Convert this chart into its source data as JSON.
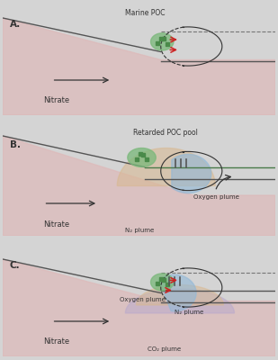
{
  "bg_color": "#d4d4d4",
  "beach_color": "#deb8b8",
  "beach_color_light": "#e8cece",
  "green_poc": "#4a8a4a",
  "green_poc_light": "#7ab87a",
  "blue_oxygen": "#90b8d8",
  "peach_n2": "#d8b890",
  "lavender_co2": "#b8a8cc",
  "arrow_red": "#cc2222",
  "arrow_black": "#333333",
  "label_color": "#333333",
  "title_A": "Marine POC",
  "title_B": "Retarded POC pool",
  "label_nitrate": "Nitrate",
  "label_n2": "N₂ plume",
  "label_oxygen": "Oxygen plume",
  "label_co2": "CO₂ plume"
}
